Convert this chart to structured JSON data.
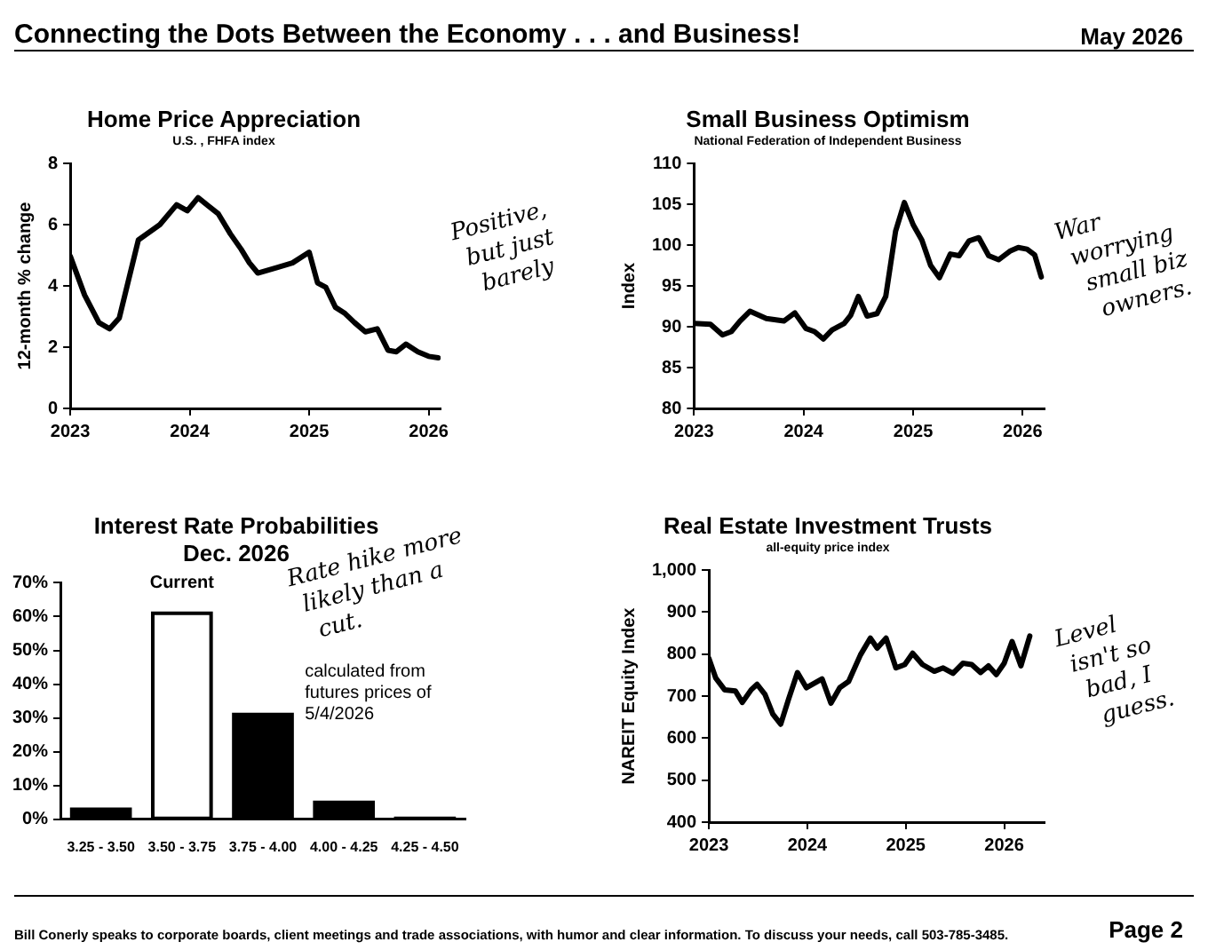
{
  "chart_data": [
    {
      "type": "other",
      "title": "Connecting the Dots Between the Economy . . . and Business!",
      "annotations": [
        "May 2026"
      ]
    },
    {
      "type": "line",
      "title": "Home Price Appreciation",
      "subtitle": "U.S. , FHFA index",
      "ylabel": "12-month % change",
      "x": [
        2023.0,
        2023.12,
        2023.24,
        2023.33,
        2023.41,
        2023.57,
        2023.75,
        2023.89,
        2023.98,
        2024.07,
        2024.16,
        2024.24,
        2024.34,
        2024.43,
        2024.5,
        2024.57,
        2024.73,
        2024.86,
        2025.0,
        2025.07,
        2025.14,
        2025.22,
        2025.3,
        2025.38,
        2025.47,
        2025.57,
        2025.66,
        2025.73,
        2025.81,
        2025.91,
        2026.0,
        2026.08
      ],
      "series": [
        {
          "color": "#000000",
          "values": [
            4.97,
            3.7,
            2.8,
            2.6,
            2.95,
            5.5,
            6.0,
            6.65,
            6.45,
            6.88,
            6.6,
            6.35,
            5.7,
            5.2,
            4.75,
            4.42,
            4.6,
            4.75,
            5.1,
            4.1,
            3.95,
            3.3,
            3.1,
            2.8,
            2.5,
            2.6,
            1.9,
            1.85,
            2.1,
            1.85,
            1.7,
            1.65
          ]
        }
      ],
      "xlim": [
        2023,
        2026.1
      ],
      "xticks": [
        2023,
        2024,
        2025,
        2026
      ],
      "ylim": [
        0,
        8
      ],
      "yticks": [
        0,
        2,
        4,
        6,
        8
      ],
      "annotations": [
        "Positive, but just barely"
      ]
    },
    {
      "type": "line",
      "title": "Small Business Optimism",
      "subtitle": "National Federation of Independent Business",
      "ylabel": "Index",
      "x": [
        2023.0,
        2023.15,
        2023.26,
        2023.34,
        2023.42,
        2023.51,
        2023.66,
        2023.82,
        2023.92,
        2024.02,
        2024.1,
        2024.18,
        2024.26,
        2024.37,
        2024.43,
        2024.5,
        2024.58,
        2024.67,
        2024.75,
        2024.84,
        2024.92,
        2025.0,
        2025.08,
        2025.16,
        2025.24,
        2025.34,
        2025.42,
        2025.51,
        2025.6,
        2025.69,
        2025.78,
        2025.89,
        2025.96,
        2026.04,
        2026.11,
        2026.17
      ],
      "series": [
        {
          "color": "#000000",
          "values": [
            90.4,
            90.3,
            89.0,
            89.4,
            90.7,
            91.9,
            91.0,
            90.7,
            91.7,
            89.8,
            89.4,
            88.5,
            89.6,
            90.4,
            91.4,
            93.7,
            91.3,
            91.6,
            93.7,
            101.7,
            105.2,
            102.5,
            100.6,
            97.5,
            96.0,
            98.9,
            98.7,
            100.5,
            100.9,
            98.7,
            98.2,
            99.3,
            99.7,
            99.5,
            98.8,
            96.1
          ]
        }
      ],
      "xlim": [
        2023,
        2026.2
      ],
      "xticks": [
        2023,
        2024,
        2025,
        2026
      ],
      "ylim": [
        80,
        110
      ],
      "yticks": [
        80,
        85,
        90,
        95,
        100,
        105,
        110
      ],
      "annotations": [
        "War worrying small biz owners."
      ]
    },
    {
      "type": "bar",
      "title": "Interest Rate Probabilities",
      "subtitle": "Dec. 2026",
      "categories": [
        "3.25 - 3.50",
        "3.50 - 3.75",
        "3.75 - 4.00",
        "4.00 - 4.25",
        "4.25 - 4.50"
      ],
      "values": [
        3,
        61,
        31,
        5,
        0.3
      ],
      "colors": [
        "#000000",
        "#ffffff",
        "#000000",
        "#000000",
        "#000000"
      ],
      "ylim": [
        0,
        70
      ],
      "yticks": [
        {
          "value": 0,
          "label": "0%"
        },
        {
          "value": 10,
          "label": "10%"
        },
        {
          "value": 20,
          "label": "20%"
        },
        {
          "value": 30,
          "label": "30%"
        },
        {
          "value": 40,
          "label": "40%"
        },
        {
          "value": 50,
          "label": "50%"
        },
        {
          "value": 60,
          "label": "60%"
        },
        {
          "value": 70,
          "label": "70%"
        }
      ],
      "annotations": [
        {
          "text": "Current",
          "x": "3.50 - 3.75",
          "y": 61
        },
        "Rate hike more likely than a cut.",
        "calculated from futures prices of 5/4/2026"
      ]
    },
    {
      "type": "line",
      "title": "Real Estate Investment Trusts",
      "subtitle": "all-equity price index",
      "ylabel": "NAREIT Equity Index",
      "x": [
        2023.0,
        2023.07,
        2023.16,
        2023.27,
        2023.34,
        2023.43,
        2023.49,
        2023.57,
        2023.65,
        2023.73,
        2023.81,
        2023.9,
        2023.99,
        2024.15,
        2024.24,
        2024.33,
        2024.42,
        2024.54,
        2024.64,
        2024.71,
        2024.8,
        2024.9,
        2024.99,
        2025.07,
        2025.17,
        2025.29,
        2025.38,
        2025.48,
        2025.58,
        2025.67,
        2025.76,
        2025.84,
        2025.92,
        2026.0,
        2026.08,
        2026.17,
        2026.26
      ],
      "series": [
        {
          "color": "#000000",
          "values": [
            790,
            743,
            715,
            712,
            685,
            715,
            728,
            704,
            657,
            633,
            693,
            756,
            720,
            741,
            683,
            720,
            735,
            798,
            838,
            814,
            838,
            767,
            775,
            802,
            775,
            759,
            767,
            754,
            778,
            775,
            756,
            772,
            751,
            778,
            830,
            772,
            843
          ]
        }
      ],
      "xlim": [
        2023,
        2026.41
      ],
      "xticks": [
        2023,
        2024,
        2025,
        2026
      ],
      "ylim": [
        400,
        1000
      ],
      "yticks": [
        400,
        500,
        600,
        700,
        800,
        900,
        {
          "value": 1000,
          "label": "1,000"
        }
      ],
      "annotations": [
        "Level isn't so bad, I guess."
      ]
    },
    {
      "type": "other",
      "annotations": [
        "Bill Conerly speaks to corporate boards, client meetings and trade associations, with humor and clear information.  To discuss your needs, call 503-785-3485.",
        "Page 2"
      ]
    }
  ]
}
